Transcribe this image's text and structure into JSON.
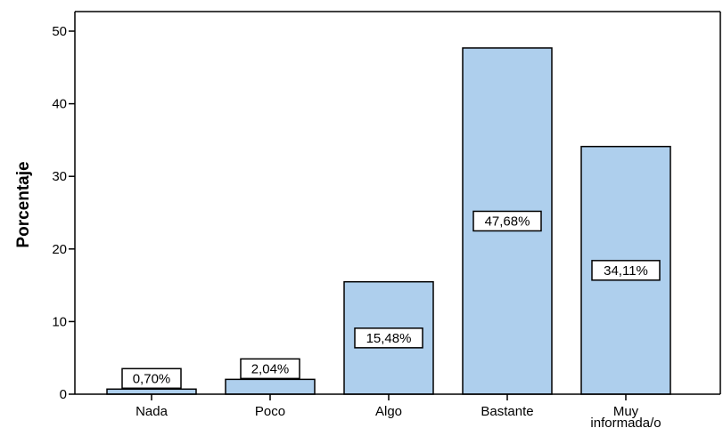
{
  "chart_data": {
    "type": "bar",
    "title": "",
    "xlabel": "",
    "ylabel": "Porcentaje",
    "ylim": [
      0,
      52
    ],
    "yticks": [
      0,
      10,
      20,
      30,
      40,
      50
    ],
    "grid": false,
    "legend": "none",
    "categories": [
      "Nada",
      "Poco",
      "Algo",
      "Bastante",
      "Muy informada/o"
    ],
    "category_label_lines": [
      [
        "Nada"
      ],
      [
        "Poco"
      ],
      [
        "Algo"
      ],
      [
        "Bastante"
      ],
      [
        "Muy",
        "informada/o"
      ]
    ],
    "values": [
      0.7,
      2.04,
      15.48,
      47.68,
      34.11
    ],
    "data_labels": [
      "0,70%",
      "2,04%",
      "15,48%",
      "47,68%",
      "34,11%"
    ],
    "colors": {
      "bar_fill": "#aecfed",
      "bar_stroke": "#000000",
      "axis": "#000000",
      "label_box_fill": "#ffffff"
    }
  }
}
